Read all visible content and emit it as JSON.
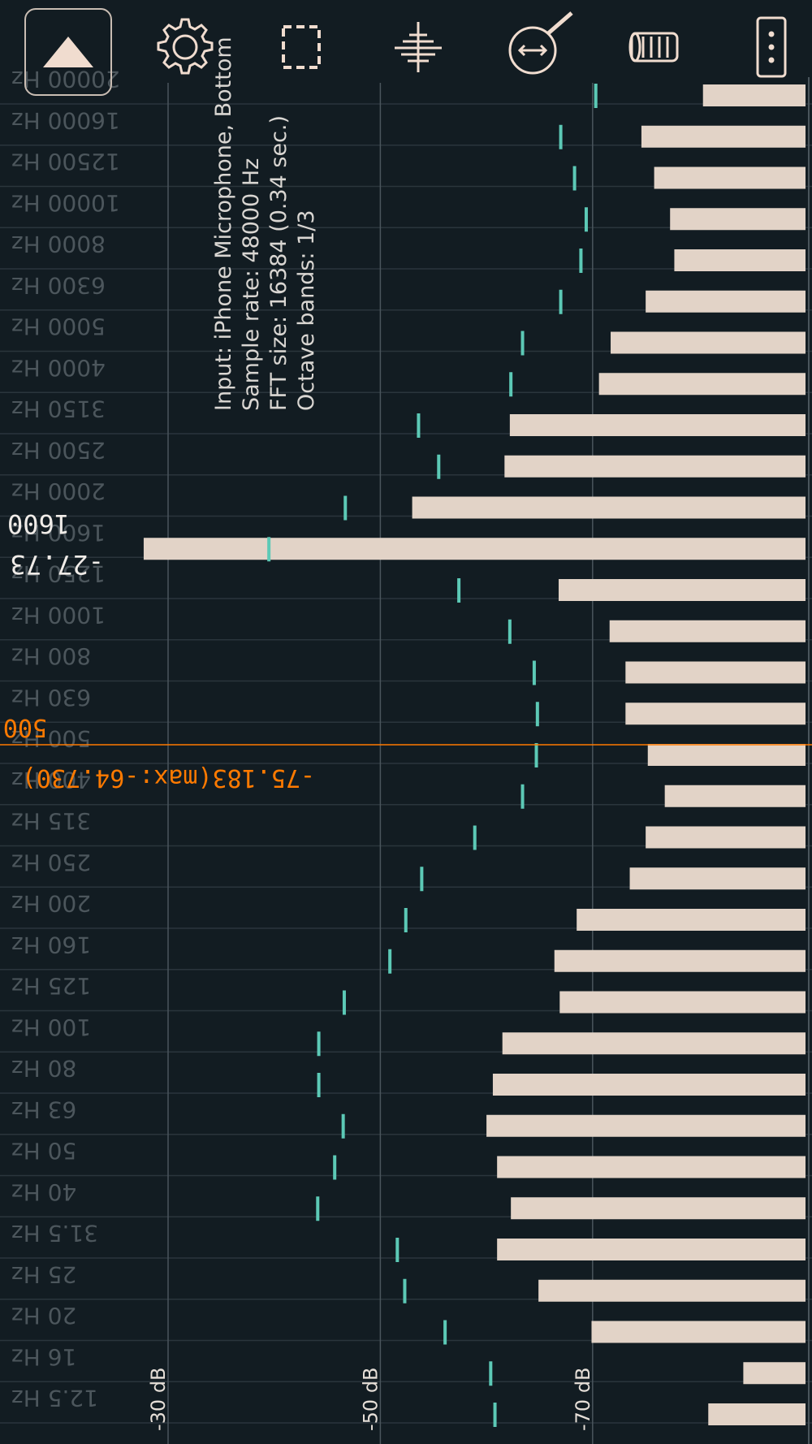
{
  "toolbar": {
    "buttons": [
      {
        "name": "collapse-button",
        "icon": "triangle-up-icon"
      },
      {
        "name": "settings-button",
        "icon": "gear-icon"
      },
      {
        "name": "selection-button",
        "icon": "dashed-rectangle-icon"
      },
      {
        "name": "waveform-button",
        "icon": "waveform-icon"
      },
      {
        "name": "zoom-button",
        "icon": "horizontal-zoom-magnifier-icon"
      },
      {
        "name": "clear-button",
        "icon": "trash-icon"
      },
      {
        "name": "more-button",
        "icon": "vertical-ellipsis-icon"
      }
    ]
  },
  "info": {
    "input": "Input: iPhone Microphone, Bottom",
    "sample_rate": "Sample rate: 48000 Hz",
    "fft_size": "FFT size: 16384 (0.34 sec.)",
    "octave_bands": "Octave bands: 1/3"
  },
  "cursor_peak": {
    "value": "-27.73",
    "freq": "1600"
  },
  "cursor_line": {
    "value": "-75.183(max:-64.730)",
    "freq": "500"
  },
  "colors": {
    "background": "#121c22",
    "bar": "#e2d3c7",
    "peak_marker": "#5cc9b6",
    "cursor": "#ff7a00",
    "grid": "#2a353c",
    "major_grid": "#4a555c"
  },
  "chart_data": {
    "type": "bar",
    "orientation": "horizontal",
    "rendered_rotated": 180,
    "categories": [
      "12.5 Hz",
      "16 Hz",
      "20 Hz",
      "25 Hz",
      "31.5 Hz",
      "40 Hz",
      "50 Hz",
      "63 Hz",
      "80 Hz",
      "100 Hz",
      "125 Hz",
      "160 Hz",
      "200 Hz",
      "250 Hz",
      "315 Hz",
      "400 Hz",
      "500 Hz",
      "630 Hz",
      "800 Hz",
      "1000 Hz",
      "1250 Hz",
      "1600 Hz",
      "2000 Hz",
      "2500 Hz",
      "3150 Hz",
      "4000 Hz",
      "5000 Hz",
      "6300 Hz",
      "8000 Hz",
      "10000 Hz",
      "12500 Hz",
      "16000 Hz",
      "20000 Hz"
    ],
    "series": [
      {
        "name": "",
        "values": [
          -80.9,
          -84.2,
          -69.9,
          -64.9,
          -61.0,
          -62.3,
          -61.0,
          -60.0,
          -60.6,
          -61.5,
          -66.9,
          -66.4,
          -68.5,
          -73.5,
          -75.0,
          -76.8,
          -75.2,
          -73.1,
          -73.1,
          -71.6,
          -66.8,
          -27.7,
          -53.0,
          -61.7,
          -62.2,
          -70.6,
          -71.7,
          -75.0,
          -77.7,
          -77.3,
          -75.8,
          -74.6,
          -80.4
        ]
      },
      {
        "name": "",
        "values": [
          -60.8,
          -60.4,
          -56.1,
          -52.3,
          -51.6,
          -44.1,
          -45.7,
          -46.5,
          -44.2,
          -44.2,
          -46.6,
          -50.9,
          -52.4,
          -53.9,
          -58.9,
          -63.4,
          -64.7,
          -64.8,
          -64.5,
          -62.2,
          -57.4,
          -39.5,
          -46.7,
          -55.5,
          -53.6,
          -62.3,
          -63.4,
          -67.0,
          -68.9,
          -69.4,
          -68.3,
          -67.0,
          -70.3
        ]
      }
    ],
    "xlabel": "",
    "ylabel": "",
    "xlim": [
      -17.8,
      -94
    ],
    "ticks": [
      "-30 dB",
      "-50 dB",
      "-70 dB"
    ],
    "tick_values": [
      -30,
      -50,
      -70
    ],
    "grid": true,
    "cursor_db": -75.183,
    "cursor_max_db": -64.73,
    "peak_db": -27.73,
    "peak_band": "1600 Hz"
  }
}
